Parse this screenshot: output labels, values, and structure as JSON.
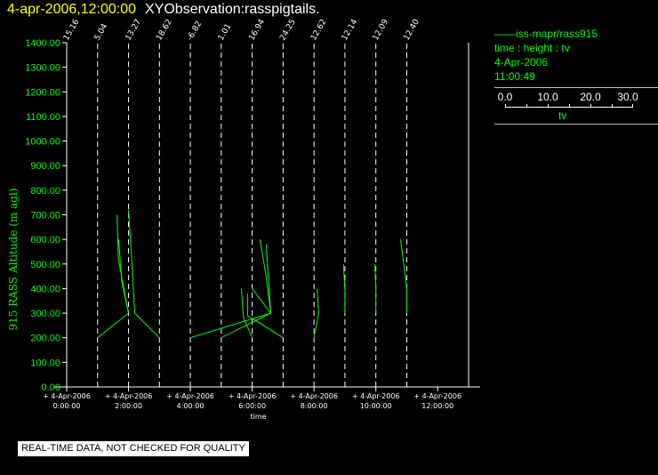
{
  "header": {
    "timestamp": "4-apr-2006,12:00:00",
    "observation": "XYObservation:rasspigtails."
  },
  "legend": {
    "series_label": "——iss-mapr/rass915",
    "variables": "time : height : tv",
    "date": "4-Apr-2006",
    "time": "11:00:49",
    "colorbar": {
      "ticks": [
        "0.0",
        "10.0",
        "20.0",
        "30.0"
      ],
      "label": "tv"
    }
  },
  "footer": {
    "quality_note": "REAL-TIME DATA, NOT CHECKED FOR QUALITY"
  },
  "colors": {
    "series": "#00ff00",
    "axis": "#ffffff",
    "title": "#ffff00",
    "background": "#000000"
  },
  "chart_data": {
    "type": "line",
    "ylabel": "915 RASS Altitude (m agl)",
    "xlabel": "time",
    "ylim": [
      0,
      1400
    ],
    "xlim": [
      0,
      13
    ],
    "yticks": [
      "0.00",
      "100.00",
      "200.00",
      "300.00",
      "400.00",
      "500.00",
      "600.00",
      "700.00",
      "800.00",
      "900.00",
      "1000.00",
      "1100.00",
      "1200.00",
      "1300.00",
      "1400.00"
    ],
    "xticks": [
      {
        "x": 0,
        "date": "4-Apr-2006",
        "time": "0:00:00"
      },
      {
        "x": 2,
        "date": "4-Apr-2006",
        "time": "2:00:00"
      },
      {
        "x": 4,
        "date": "4-Apr-2006",
        "time": "4:00:00"
      },
      {
        "x": 6,
        "date": "4-Apr-2006",
        "time": "6:00:00"
      },
      {
        "x": 8,
        "date": "4-Apr-2006",
        "time": "8:00:00"
      },
      {
        "x": 10,
        "date": "4-Apr-2006",
        "time": "10:00:00"
      },
      {
        "x": 12,
        "date": "4-Apr-2006",
        "time": "12:00:00"
      }
    ],
    "profile_lines": [
      {
        "x": 0,
        "label": "15.16"
      },
      {
        "x": 1,
        "label": "5.04"
      },
      {
        "x": 2,
        "label": "13.27"
      },
      {
        "x": 3,
        "label": "18.62"
      },
      {
        "x": 4,
        "label": "-6.82"
      },
      {
        "x": 5,
        "label": "1.01"
      },
      {
        "x": 6,
        "label": "16.94"
      },
      {
        "x": 7,
        "label": "24.25"
      },
      {
        "x": 8,
        "label": "12.62"
      },
      {
        "x": 9,
        "label": "12.14"
      },
      {
        "x": 10,
        "label": "12.09"
      },
      {
        "x": 11,
        "label": "12.40"
      }
    ],
    "series": [
      {
        "points": [
          [
            1.0,
            200
          ],
          [
            2.0,
            300
          ],
          [
            1.67,
            520
          ],
          [
            1.63,
            700
          ]
        ]
      },
      {
        "points": [
          [
            1.68,
            600
          ],
          [
            1.78,
            430
          ],
          [
            2.0,
            300
          ]
        ]
      },
      {
        "points": [
          [
            2.0,
            720
          ],
          [
            2.07,
            580
          ],
          [
            2.12,
            490
          ],
          [
            2.2,
            300
          ],
          [
            3.0,
            200
          ]
        ]
      },
      {
        "points": [
          [
            4.0,
            200
          ],
          [
            6.6,
            300
          ],
          [
            6.52,
            450
          ],
          [
            6.45,
            580
          ]
        ]
      },
      {
        "points": [
          [
            5.0,
            200
          ],
          [
            6.6,
            300
          ],
          [
            6.0,
            400
          ]
        ]
      },
      {
        "points": [
          [
            5.65,
            400
          ],
          [
            5.72,
            280
          ],
          [
            6.0,
            200
          ]
        ]
      },
      {
        "points": [
          [
            5.85,
            380
          ],
          [
            5.85,
            290
          ],
          [
            7.0,
            200
          ]
        ]
      },
      {
        "points": [
          [
            6.25,
            600
          ],
          [
            6.45,
            450
          ],
          [
            6.6,
            300
          ]
        ]
      },
      {
        "points": [
          [
            8.0,
            200
          ],
          [
            8.15,
            300
          ],
          [
            8.1,
            400
          ]
        ]
      },
      {
        "points": [
          [
            9.0,
            300
          ],
          [
            9.0,
            400
          ],
          [
            8.95,
            500
          ]
        ]
      },
      {
        "points": [
          [
            10.0,
            300
          ],
          [
            10.0,
            400
          ],
          [
            9.97,
            500
          ]
        ]
      },
      {
        "points": [
          [
            10.8,
            600
          ],
          [
            11.0,
            400
          ],
          [
            11.0,
            300
          ]
        ]
      }
    ]
  }
}
